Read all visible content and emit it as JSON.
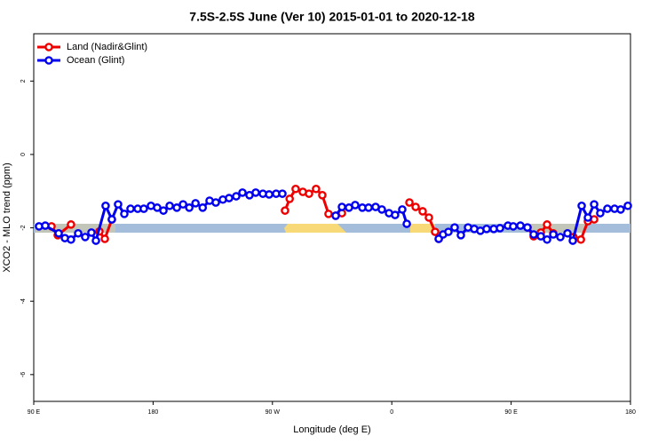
{
  "chart_data": {
    "type": "line",
    "title": "7.5S-2.5S June (Ver 10)   2015-01-01 to 2020-12-18",
    "x_label": "Longitude (deg E)",
    "y_label": "XCO2 - MLO trend (ppm)",
    "xlim": [
      90,
      540
    ],
    "xticks": [
      {
        "value": 90,
        "label": "90 E"
      },
      {
        "value": 180,
        "label": "180"
      },
      {
        "value": 270,
        "label": "90 W"
      },
      {
        "value": 360,
        "label": "0"
      },
      {
        "value": 450,
        "label": "90 E"
      },
      {
        "value": 540,
        "label": "180"
      }
    ],
    "ylim": [
      -6.73,
      3.29
    ],
    "yticks": [
      -6,
      -4,
      -2,
      0,
      2
    ],
    "legend": "top-left",
    "series": [
      {
        "name": "Land (Nadir&Glint)",
        "color": "#ee0000",
        "x": [
          103.4,
          108.1,
          118.1,
          null,
          139.5,
          143.6,
          148.9,
          null,
          279.5,
          283,
          287.5,
          292.9,
          297.6,
          302.9,
          307.6,
          312.3,
          317.7,
          322.4,
          null,
          373.3,
          378,
          383.3,
          388,
          392.7,
          395.4,
          null,
          462.3,
          467,
          472.4,
          477.1,
          481.8,
          null,
          497,
          502.6,
          507.9,
          512.6
        ],
        "values": [
          -1.96,
          -2.2,
          -1.91,
          null,
          -2.1,
          -2.3,
          -1.77,
          null,
          -1.53,
          -1.21,
          -0.94,
          -1.02,
          -1.07,
          -0.94,
          -1.11,
          -1.62,
          -1.67,
          -1.6,
          null,
          -1.31,
          -1.43,
          -1.55,
          -1.72,
          -2.11,
          -2.3,
          null,
          -1.99,
          -2.23,
          -2.13,
          -1.91,
          -2.15,
          null,
          -2.25,
          -2.32,
          -1.82,
          -1.77
        ]
      },
      {
        "name": "Ocean (Glint)",
        "color": "#0000ee",
        "x": [
          94,
          98.7,
          108.8,
          113.5,
          118.1,
          123.5,
          128.8,
          133.5,
          136.9,
          144.2,
          148.9,
          153.6,
          158.3,
          163,
          168.4,
          173,
          178.4,
          183.1,
          187.8,
          192.5,
          197.9,
          202.6,
          207.3,
          212,
          217.4,
          222.6,
          227.3,
          232.6,
          237.3,
          242.7,
          247.4,
          252.7,
          257.4,
          262.8,
          267.5,
          272.8,
          277.5,
          null,
          317.7,
          322.4,
          327.7,
          332.4,
          337.8,
          342.5,
          347.8,
          352.5,
          357.9,
          362.5,
          367.9,
          371.3,
          null,
          395.4,
          398.7,
          402.7,
          407.4,
          412.1,
          417.5,
          422.2,
          426.8,
          431.5,
          436.9,
          441.6,
          447.6,
          451.6,
          457,
          462.3,
          467,
          472.4,
          477.1,
          481.8,
          487.1,
          492.5,
          496.5,
          503.2,
          507.9,
          512.6,
          517.2,
          522.6,
          528,
          532.6,
          538
        ],
        "values": [
          -1.96,
          -1.94,
          -2.15,
          -2.28,
          -2.32,
          -2.15,
          -2.25,
          -2.13,
          -2.35,
          -1.4,
          -1.77,
          -1.36,
          -1.62,
          -1.48,
          -1.48,
          -1.48,
          -1.4,
          -1.45,
          -1.53,
          -1.4,
          -1.45,
          -1.36,
          -1.45,
          -1.33,
          -1.45,
          -1.26,
          -1.31,
          -1.23,
          -1.19,
          -1.14,
          -1.04,
          -1.11,
          -1.04,
          -1.07,
          -1.09,
          -1.07,
          -1.07,
          null,
          -1.67,
          -1.43,
          -1.45,
          -1.38,
          -1.45,
          -1.45,
          -1.43,
          -1.5,
          -1.6,
          -1.65,
          -1.5,
          -1.89,
          null,
          -2.3,
          -2.18,
          -2.11,
          -1.99,
          -2.2,
          -1.99,
          -2.03,
          -2.08,
          -2.03,
          -2.03,
          -2.01,
          -1.94,
          -1.96,
          -1.94,
          -1.99,
          -2.18,
          -2.23,
          -2.32,
          -2.18,
          -2.25,
          -2.15,
          -2.35,
          -1.4,
          -1.72,
          -1.36,
          -1.6,
          -1.48,
          -1.48,
          -1.5,
          -1.4
        ]
      }
    ]
  }
}
